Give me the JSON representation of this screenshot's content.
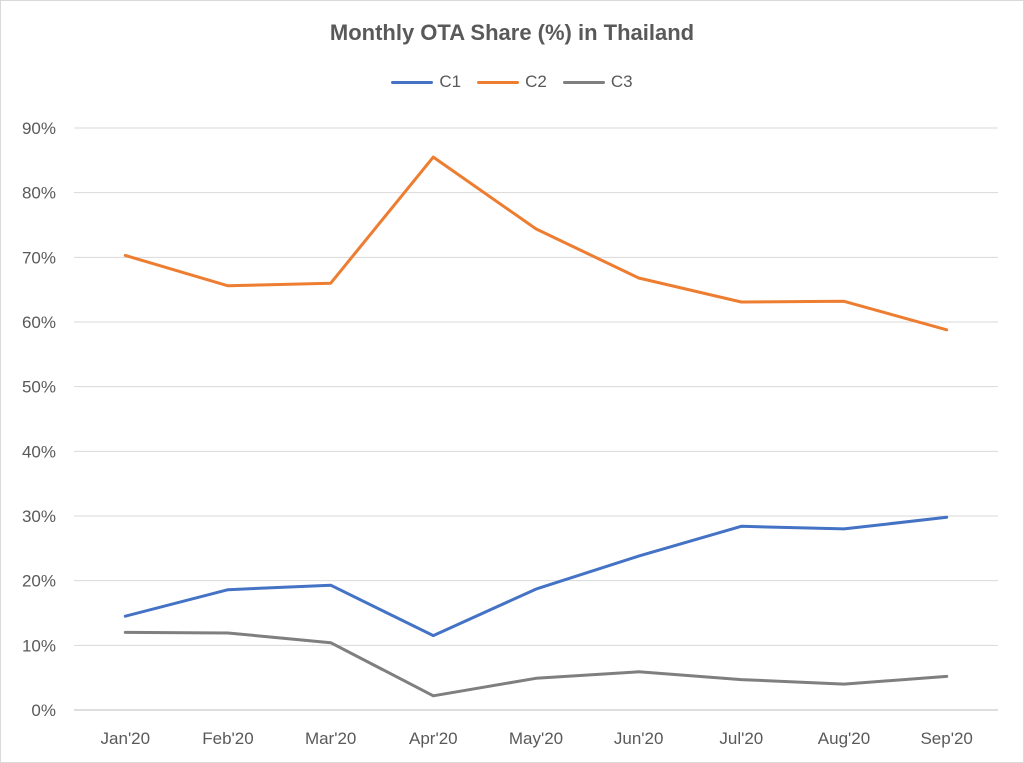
{
  "chart_data": {
    "type": "line",
    "title": "Monthly OTA Share (%) in Thailand",
    "xlabel": "",
    "ylabel": "",
    "categories": [
      "Jan'20",
      "Feb'20",
      "Mar'20",
      "Apr'20",
      "May'20",
      "Jun'20",
      "Jul'20",
      "Aug'20",
      "Sep'20"
    ],
    "ylim": [
      0,
      90
    ],
    "yticks": [
      0,
      10,
      20,
      30,
      40,
      50,
      60,
      70,
      80,
      90
    ],
    "ytick_labels": [
      "0%",
      "10%",
      "20%",
      "30%",
      "40%",
      "50%",
      "60%",
      "70%",
      "80%",
      "90%"
    ],
    "grid": true,
    "legend_position": "top-center",
    "series": [
      {
        "name": "C1",
        "color": "#4472c4",
        "values": [
          14.5,
          18.6,
          19.3,
          11.5,
          18.7,
          23.8,
          28.4,
          28.0,
          29.8
        ]
      },
      {
        "name": "C2",
        "color": "#ed7d31",
        "values": [
          70.3,
          65.6,
          66.0,
          85.5,
          74.4,
          66.8,
          63.1,
          63.2,
          58.8
        ]
      },
      {
        "name": "C3",
        "color": "#7f7f7f",
        "values": [
          12.0,
          11.9,
          10.4,
          2.2,
          4.9,
          5.9,
          4.7,
          4.0,
          5.2
        ]
      }
    ]
  }
}
